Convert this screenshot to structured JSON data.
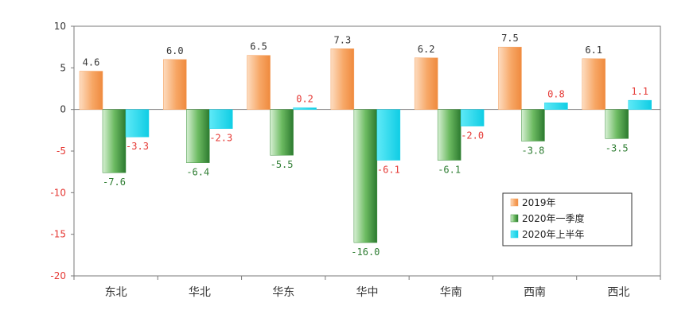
{
  "chart_data": {
    "type": "bar",
    "categories": [
      "东北",
      "华北",
      "华东",
      "华中",
      "华南",
      "西南",
      "西北"
    ],
    "series": [
      {
        "name": "2019年",
        "values": [
          4.6,
          6.0,
          6.5,
          7.3,
          6.2,
          7.5,
          6.1
        ],
        "color": "#f5a15f"
      },
      {
        "name": "2020年一季度",
        "values": [
          -7.6,
          -6.4,
          -5.5,
          -16.0,
          -6.1,
          -3.8,
          -3.5
        ],
        "color": "#3a8f3a"
      },
      {
        "name": "2020年上半年",
        "values": [
          -3.3,
          -2.3,
          0.2,
          -6.1,
          -2.0,
          0.8,
          1.1
        ],
        "color": "#19d3ea"
      }
    ],
    "data_labels": [
      [
        "4.6",
        "6.0",
        "6.5",
        "7.3",
        "6.2",
        "7.5",
        "6.1"
      ],
      [
        "-7.6",
        "-6.4",
        "-5.5",
        "-16.0",
        "-6.1",
        "-3.8",
        "-3.5"
      ],
      [
        "-3.3",
        "-2.3",
        "0.2",
        "-6.1",
        "-2.0",
        "0.8",
        "1.1"
      ]
    ],
    "label_colors": [
      "#333333",
      "#2e7d32",
      "#e53935"
    ],
    "ylim": [
      -20,
      10
    ],
    "yticks": [
      10,
      5,
      0,
      -5,
      -10,
      -15,
      -20
    ],
    "ytick_labels": [
      "10",
      "5",
      "0",
      "-5",
      "-10",
      "-15",
      "-20"
    ],
    "negative_tick_color": "#e53935",
    "positive_tick_color": "#333333",
    "grid": false,
    "legend_position": "bottom-right",
    "title": "",
    "xlabel": "",
    "ylabel": ""
  }
}
